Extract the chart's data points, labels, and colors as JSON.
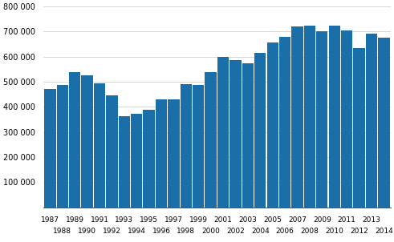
{
  "years": [
    1987,
    1988,
    1989,
    1990,
    1991,
    1992,
    1993,
    1994,
    1995,
    1996,
    1997,
    1998,
    1999,
    2000,
    2001,
    2002,
    2003,
    2004,
    2005,
    2006,
    2007,
    2008,
    2009,
    2010,
    2011,
    2012,
    2013,
    2014
  ],
  "values": [
    470000,
    487000,
    537000,
    525000,
    493000,
    445000,
    363000,
    371000,
    388000,
    430000,
    431000,
    492000,
    487000,
    537000,
    598000,
    585000,
    575000,
    614000,
    657000,
    678000,
    720000,
    725000,
    700000,
    725000,
    705000,
    635000,
    692000,
    675000
  ],
  "bar_color": "#1a6fa8",
  "ylim": [
    0,
    800000
  ],
  "yticks": [
    100000,
    200000,
    300000,
    400000,
    500000,
    600000,
    700000,
    800000
  ],
  "ytick_labels": [
    "100 000",
    "200 000",
    "300 000",
    "400 000",
    "500 000",
    "600 000",
    "700 000",
    "800 000"
  ],
  "odd_years": [
    1987,
    1989,
    1991,
    1993,
    1995,
    1997,
    1999,
    2001,
    2003,
    2005,
    2007,
    2009,
    2011,
    2013
  ],
  "even_years": [
    1988,
    1990,
    1992,
    1994,
    1996,
    1998,
    2000,
    2002,
    2004,
    2006,
    2008,
    2010,
    2012,
    2014
  ],
  "background_color": "#ffffff",
  "grid_color": "#d0d0d0",
  "bar_width": 0.93,
  "fontsize_ticks": 7,
  "fontsize_xlabels": 6.5
}
